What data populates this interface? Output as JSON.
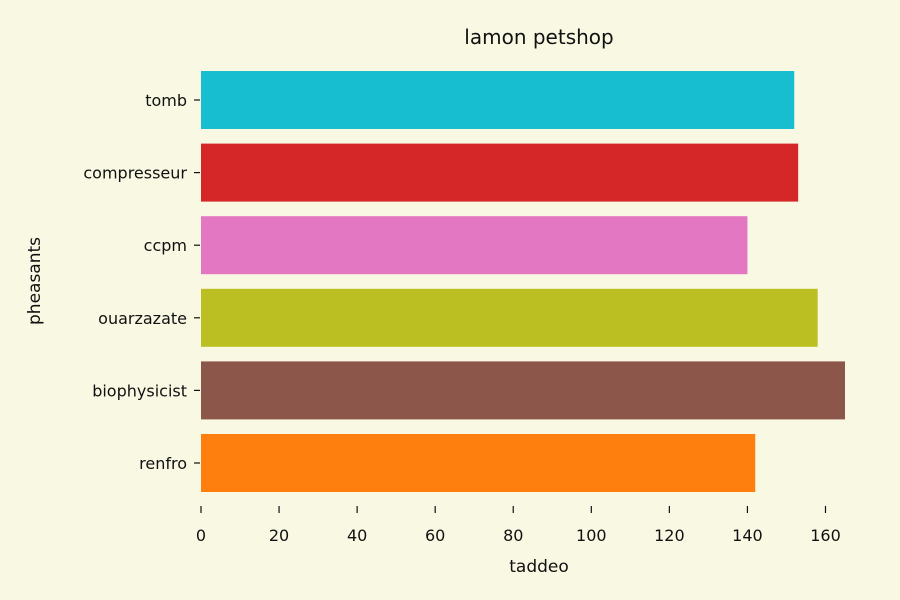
{
  "chart_data": {
    "type": "bar",
    "orientation": "horizontal",
    "title": "lamon petshop",
    "xlabel": "taddeo",
    "ylabel": "pheasants",
    "categories": [
      "tomb",
      "compresseur",
      "ccpm",
      "ouarzazate",
      "biophysicist",
      "renfro"
    ],
    "values": [
      152,
      153,
      140,
      158,
      165,
      142
    ],
    "colors": [
      "#17becf",
      "#d62728",
      "#e377c2",
      "#bcbf22",
      "#8c564b",
      "#ff7f0e"
    ],
    "xlim": [
      0,
      165
    ],
    "xticks": [
      "0",
      "20",
      "40",
      "60",
      "80",
      "100",
      "120",
      "140",
      "160"
    ],
    "grid": false,
    "background": "#f9f8e3"
  }
}
